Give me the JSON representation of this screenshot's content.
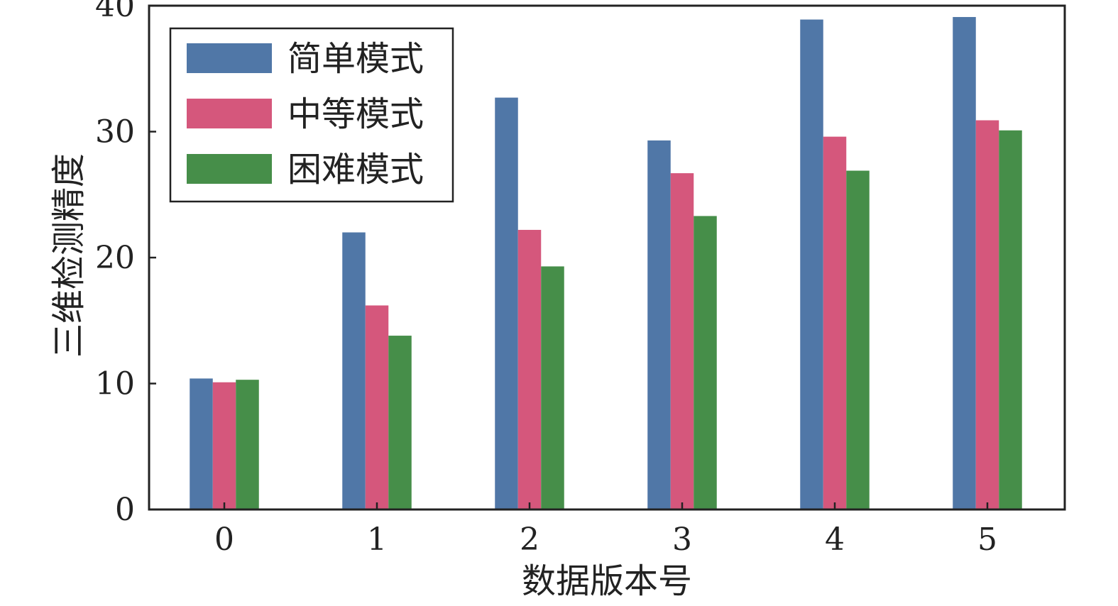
{
  "chart_data": {
    "type": "bar",
    "title": "",
    "xlabel": "数据版本号",
    "ylabel": "三维检测精度",
    "categories": [
      "0",
      "1",
      "2",
      "3",
      "4",
      "5"
    ],
    "ylim": [
      0,
      40
    ],
    "yticks": [
      "0",
      "10",
      "20",
      "30",
      "40"
    ],
    "grid": false,
    "legend_position": "top-left",
    "series": [
      {
        "name": "简单模式",
        "color": "#5077a7",
        "values": [
          10.4,
          22.0,
          32.7,
          29.3,
          38.9,
          39.1
        ]
      },
      {
        "name": "中等模式",
        "color": "#d5577c",
        "values": [
          10.1,
          16.2,
          22.2,
          26.7,
          29.6,
          30.9
        ]
      },
      {
        "name": "困难模式",
        "color": "#468e49",
        "values": [
          10.3,
          13.8,
          19.3,
          23.3,
          26.9,
          30.1
        ]
      }
    ]
  }
}
